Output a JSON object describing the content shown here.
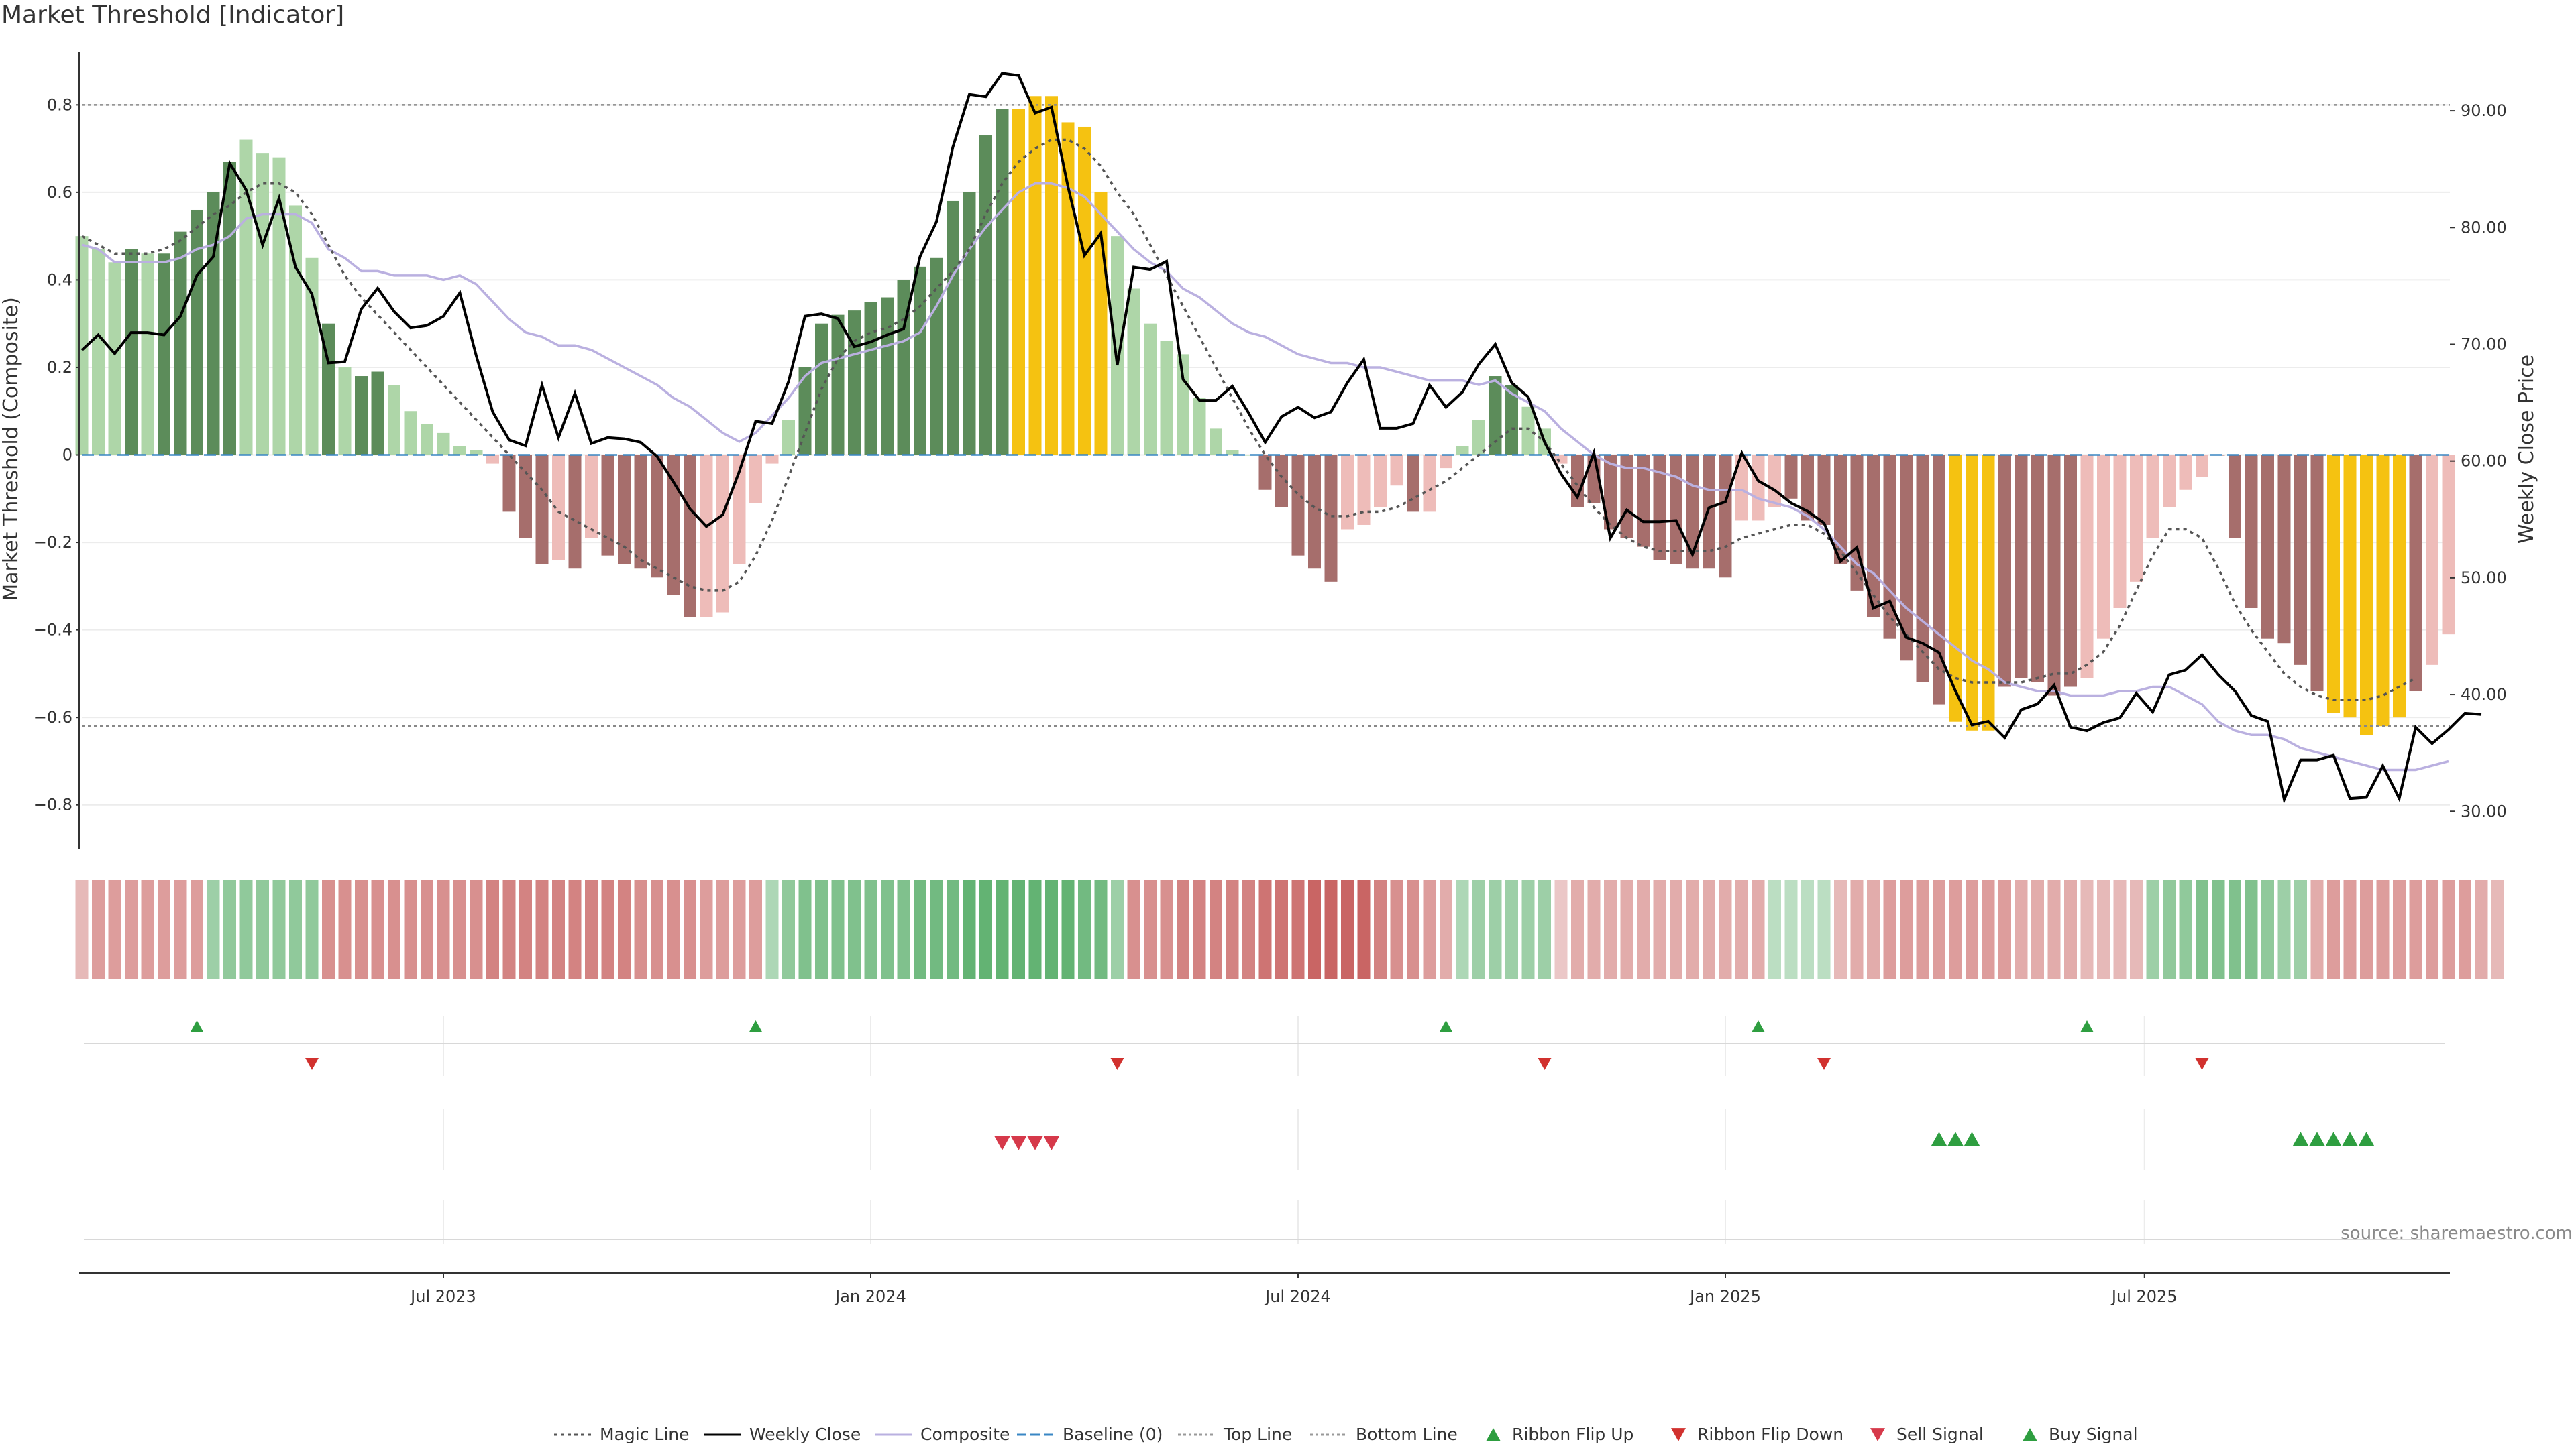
{
  "title": "Market Threshold [Indicator]",
  "source_text": "source: sharemaestro.com",
  "colors": {
    "strong_bull": "#5c8c5a",
    "weak_bull": "#aed6a8",
    "strong_bear": "#a66e6c",
    "weak_bear": "#eebcb9",
    "extreme": "#f5c211",
    "weekly_close": "#000000",
    "composite": "#bab0e0",
    "magic": "#555555",
    "baseline": "#3a87c4",
    "ribbon_up": "#2e9e40",
    "ribbon_down": "#d1312e",
    "sell": "#d6394a",
    "buy": "#2e9e40"
  },
  "chart_data": {
    "type": "bar",
    "ylabel_left": "Market Threshold (Composite)",
    "ylabel_right": "Weekly Close Price",
    "ylim_left": [
      -0.9,
      0.92
    ],
    "ylim_right": [
      26.8,
      95.0
    ],
    "yticks_left": [
      "0.8",
      "0.6",
      "0.4",
      "0.2",
      "0",
      "−0.2",
      "−0.4",
      "−0.6",
      "−0.8"
    ],
    "yticks_right": [
      "90.00",
      "80.00",
      "70.00",
      "60.00",
      "50.00",
      "40.00",
      "30.00"
    ],
    "x_tick_labels": [
      "Jul 2023",
      "Jan 2024",
      "Jul 2024",
      "Jan 2025",
      "Jul 2025"
    ],
    "x_tick_weeks": [
      22,
      48,
      74,
      100,
      125.5
    ],
    "top_line": 0.8,
    "bottom_line": -0.62,
    "bar_values": [
      0.5,
      0.47,
      0.44,
      0.47,
      0.46,
      0.46,
      0.51,
      0.56,
      0.6,
      0.67,
      0.72,
      0.69,
      0.68,
      0.57,
      0.45,
      0.3,
      0.2,
      0.18,
      0.19,
      0.16,
      0.1,
      0.07,
      0.05,
      0.02,
      0.01,
      -0.02,
      -0.13,
      -0.19,
      -0.25,
      -0.24,
      -0.26,
      -0.19,
      -0.23,
      -0.25,
      -0.26,
      -0.28,
      -0.32,
      -0.37,
      -0.37,
      -0.36,
      -0.25,
      -0.11,
      -0.02,
      0.08,
      0.2,
      0.3,
      0.32,
      0.33,
      0.35,
      0.36,
      0.4,
      0.43,
      0.45,
      0.58,
      0.6,
      0.73,
      0.79,
      0.79,
      0.82,
      0.82,
      0.76,
      0.75,
      0.6,
      0.5,
      0.38,
      0.3,
      0.26,
      0.23,
      0.13,
      0.06,
      0.01,
      0.0,
      -0.08,
      -0.12,
      -0.23,
      -0.26,
      -0.29,
      -0.17,
      -0.16,
      -0.12,
      -0.07,
      -0.13,
      -0.13,
      -0.03,
      0.02,
      0.08,
      0.18,
      0.16,
      0.11,
      0.06,
      -0.02,
      -0.12,
      -0.11,
      -0.17,
      -0.19,
      -0.21,
      -0.24,
      -0.25,
      -0.26,
      -0.26,
      -0.28,
      -0.15,
      -0.15,
      -0.12,
      -0.1,
      -0.15,
      -0.16,
      -0.25,
      -0.31,
      -0.37,
      -0.42,
      -0.47,
      -0.52,
      -0.57,
      -0.61,
      -0.63,
      -0.63,
      -0.53,
      -0.51,
      -0.52,
      -0.55,
      -0.53,
      -0.51,
      -0.42,
      -0.35,
      -0.29,
      -0.19,
      -0.12,
      -0.08,
      -0.05,
      0.0,
      -0.19,
      -0.35,
      -0.42,
      -0.43,
      -0.48,
      -0.54,
      -0.59,
      -0.6,
      -0.64,
      -0.62,
      -0.6,
      -0.54,
      -0.48,
      -0.41
    ],
    "bar_classes": [
      "wg",
      "wg",
      "wg",
      "sg",
      "wg",
      "sg",
      "sg",
      "sg",
      "sg",
      "sg",
      "wg",
      "wg",
      "wg",
      "wg",
      "wg",
      "sg",
      "wg",
      "sg",
      "sg",
      "wg",
      "wg",
      "wg",
      "wg",
      "wg",
      "wg",
      "wr",
      "sr",
      "sr",
      "sr",
      "wr",
      "sr",
      "wr",
      "sr",
      "sr",
      "sr",
      "sr",
      "sr",
      "sr",
      "wr",
      "wr",
      "wr",
      "wr",
      "wr",
      "wg",
      "sg",
      "sg",
      "sg",
      "sg",
      "sg",
      "sg",
      "sg",
      "sg",
      "sg",
      "sg",
      "sg",
      "sg",
      "sg",
      "ye",
      "ye",
      "ye",
      "ye",
      "ye",
      "ye",
      "wg",
      "wg",
      "wg",
      "wg",
      "wg",
      "wg",
      "wg",
      "wg",
      "wg",
      "sr",
      "sr",
      "sr",
      "sr",
      "sr",
      "wr",
      "wr",
      "wr",
      "wr",
      "sr",
      "wr",
      "wr",
      "wg",
      "wg",
      "sg",
      "sg",
      "wg",
      "wg",
      "wr",
      "sr",
      "sr",
      "sr",
      "sr",
      "sr",
      "sr",
      "sr",
      "sr",
      "sr",
      "sr",
      "wr",
      "wr",
      "wr",
      "sr",
      "sr",
      "sr",
      "sr",
      "sr",
      "sr",
      "sr",
      "sr",
      "sr",
      "sr",
      "ye",
      "ye",
      "ye",
      "sr",
      "sr",
      "sr",
      "sr",
      "sr",
      "wr",
      "wr",
      "wr",
      "wr",
      "wr",
      "wr",
      "wr",
      "wr",
      "sr",
      "sr",
      "sr",
      "sr",
      "sr",
      "sr",
      "sr",
      "ye",
      "ye",
      "ye",
      "ye",
      "ye",
      "sr",
      "wr",
      "wr"
    ],
    "weekly_close": [
      69.5,
      70.8,
      69.2,
      71.0,
      71.0,
      70.8,
      72.4,
      75.9,
      77.5,
      85.5,
      83.2,
      78.5,
      82.5,
      76.6,
      74.3,
      68.4,
      68.5,
      73.0,
      74.8,
      72.8,
      71.4,
      71.6,
      72.4,
      74.4,
      69.0,
      64.2,
      61.8,
      61.3,
      66.5,
      62.0,
      65.8,
      61.5,
      62.0,
      61.9,
      61.6,
      60.4,
      58.2,
      55.9,
      54.4,
      55.4,
      59.1,
      63.4,
      63.2,
      66.8,
      72.4,
      72.6,
      72.2,
      69.8,
      70.2,
      70.8,
      71.3,
      77.5,
      80.5,
      86.9,
      91.4,
      91.2,
      93.2,
      93.0,
      89.8,
      90.3,
      83.5,
      77.6,
      79.5,
      68.2,
      76.6,
      76.4,
      77.1,
      67.0,
      65.2,
      65.2,
      66.4,
      64.1,
      61.6,
      63.8,
      64.6,
      63.7,
      64.2,
      66.7,
      68.7,
      62.8,
      62.8,
      63.2,
      66.5,
      64.6,
      65.9,
      68.3,
      70.0,
      66.7,
      65.5,
      61.6,
      58.9,
      56.9,
      60.7,
      53.4,
      55.8,
      54.8,
      54.8,
      54.9,
      52.0,
      56.0,
      56.5,
      60.7,
      58.3,
      57.5,
      56.4,
      55.7,
      54.7,
      51.4,
      52.6,
      47.4,
      48.0,
      44.9,
      44.4,
      43.6,
      40.3,
      37.4,
      37.7,
      36.3,
      38.7,
      39.2,
      40.8,
      37.2,
      36.9,
      37.6,
      38.0,
      40.1,
      38.5,
      41.7,
      42.1,
      43.4,
      41.7,
      40.3,
      38.2,
      37.7,
      31.0,
      34.4,
      34.4,
      34.8,
      31.1,
      31.2,
      33.9,
      31.1,
      37.2,
      35.8,
      37.0,
      38.4,
      38.3
    ],
    "composite": [
      0.48,
      0.47,
      0.44,
      0.44,
      0.44,
      0.44,
      0.45,
      0.47,
      0.48,
      0.5,
      0.54,
      0.55,
      0.55,
      0.55,
      0.53,
      0.47,
      0.45,
      0.42,
      0.42,
      0.41,
      0.41,
      0.41,
      0.4,
      0.41,
      0.39,
      0.35,
      0.31,
      0.28,
      0.27,
      0.25,
      0.25,
      0.24,
      0.22,
      0.2,
      0.18,
      0.16,
      0.13,
      0.11,
      0.08,
      0.05,
      0.03,
      0.05,
      0.09,
      0.13,
      0.18,
      0.21,
      0.22,
      0.23,
      0.24,
      0.25,
      0.26,
      0.28,
      0.34,
      0.41,
      0.47,
      0.52,
      0.56,
      0.6,
      0.62,
      0.62,
      0.61,
      0.59,
      0.55,
      0.51,
      0.47,
      0.44,
      0.42,
      0.38,
      0.36,
      0.33,
      0.3,
      0.28,
      0.27,
      0.25,
      0.23,
      0.22,
      0.21,
      0.21,
      0.2,
      0.2,
      0.19,
      0.18,
      0.17,
      0.17,
      0.17,
      0.16,
      0.17,
      0.14,
      0.12,
      0.1,
      0.06,
      0.03,
      0.0,
      -0.02,
      -0.03,
      -0.03,
      -0.04,
      -0.05,
      -0.07,
      -0.08,
      -0.08,
      -0.08,
      -0.1,
      -0.11,
      -0.12,
      -0.14,
      -0.17,
      -0.21,
      -0.25,
      -0.27,
      -0.31,
      -0.35,
      -0.38,
      -0.41,
      -0.44,
      -0.47,
      -0.49,
      -0.52,
      -0.53,
      -0.54,
      -0.54,
      -0.55,
      -0.55,
      -0.55,
      -0.54,
      -0.54,
      -0.53,
      -0.53,
      -0.55,
      -0.57,
      -0.61,
      -0.63,
      -0.64,
      -0.64,
      -0.65,
      -0.67,
      -0.68,
      -0.69,
      -0.7,
      -0.71,
      -0.72,
      -0.72,
      -0.72,
      -0.71,
      -0.7
    ],
    "magic_line": [
      0.5,
      0.48,
      0.46,
      0.46,
      0.46,
      0.47,
      0.49,
      0.52,
      0.55,
      0.57,
      0.6,
      0.62,
      0.62,
      0.6,
      0.55,
      0.48,
      0.41,
      0.36,
      0.32,
      0.28,
      0.24,
      0.2,
      0.16,
      0.12,
      0.08,
      0.04,
      0.0,
      -0.04,
      -0.08,
      -0.13,
      -0.15,
      -0.17,
      -0.19,
      -0.21,
      -0.24,
      -0.26,
      -0.28,
      -0.3,
      -0.31,
      -0.31,
      -0.29,
      -0.23,
      -0.15,
      -0.05,
      0.05,
      0.15,
      0.22,
      0.26,
      0.28,
      0.29,
      0.31,
      0.34,
      0.38,
      0.42,
      0.47,
      0.55,
      0.62,
      0.67,
      0.7,
      0.72,
      0.72,
      0.7,
      0.66,
      0.6,
      0.55,
      0.48,
      0.41,
      0.34,
      0.27,
      0.2,
      0.13,
      0.06,
      0.0,
      -0.05,
      -0.09,
      -0.12,
      -0.14,
      -0.14,
      -0.13,
      -0.13,
      -0.12,
      -0.1,
      -0.08,
      -0.06,
      -0.03,
      0.0,
      0.03,
      0.06,
      0.06,
      0.03,
      -0.02,
      -0.07,
      -0.12,
      -0.16,
      -0.19,
      -0.21,
      -0.22,
      -0.22,
      -0.22,
      -0.22,
      -0.21,
      -0.19,
      -0.18,
      -0.17,
      -0.16,
      -0.16,
      -0.18,
      -0.22,
      -0.27,
      -0.32,
      -0.37,
      -0.41,
      -0.45,
      -0.49,
      -0.51,
      -0.52,
      -0.52,
      -0.52,
      -0.52,
      -0.51,
      -0.5,
      -0.5,
      -0.48,
      -0.45,
      -0.39,
      -0.31,
      -0.23,
      -0.17,
      -0.17,
      -0.19,
      -0.26,
      -0.34,
      -0.4,
      -0.45,
      -0.5,
      -0.53,
      -0.55,
      -0.56,
      -0.56,
      -0.56,
      -0.55,
      -0.53,
      -0.51
    ],
    "ribbon_strength": [
      -0.3,
      -0.5,
      -0.5,
      -0.5,
      -0.5,
      -0.5,
      -0.5,
      -0.5,
      0.4,
      0.5,
      0.5,
      0.5,
      0.5,
      0.5,
      0.5,
      -0.6,
      -0.6,
      -0.6,
      -0.6,
      -0.6,
      -0.6,
      -0.6,
      -0.6,
      -0.6,
      -0.6,
      -0.7,
      -0.7,
      -0.7,
      -0.7,
      -0.7,
      -0.7,
      -0.7,
      -0.7,
      -0.7,
      -0.6,
      -0.6,
      -0.6,
      -0.6,
      -0.5,
      -0.5,
      -0.5,
      -0.5,
      0.3,
      0.5,
      0.6,
      0.6,
      0.6,
      0.6,
      0.6,
      0.6,
      0.6,
      0.7,
      0.7,
      0.7,
      0.8,
      0.8,
      0.8,
      0.8,
      0.8,
      0.8,
      0.8,
      0.7,
      0.7,
      0.4,
      -0.6,
      -0.6,
      -0.6,
      -0.7,
      -0.7,
      -0.7,
      -0.7,
      -0.7,
      -0.8,
      -0.8,
      -0.8,
      -0.9,
      -0.9,
      -0.9,
      -0.9,
      -0.7,
      -0.6,
      -0.6,
      -0.5,
      -0.4,
      0.3,
      0.4,
      0.4,
      0.4,
      0.4,
      0.4,
      -0.2,
      -0.4,
      -0.4,
      -0.4,
      -0.4,
      -0.4,
      -0.4,
      -0.4,
      -0.4,
      -0.4,
      -0.4,
      -0.4,
      -0.4,
      0.2,
      0.2,
      0.2,
      0.2,
      -0.3,
      -0.4,
      -0.4,
      -0.5,
      -0.5,
      -0.5,
      -0.5,
      -0.5,
      -0.5,
      -0.5,
      -0.5,
      -0.4,
      -0.4,
      -0.4,
      -0.4,
      -0.3,
      -0.3,
      -0.3,
      -0.3,
      0.4,
      0.5,
      0.5,
      0.6,
      0.6,
      0.6,
      0.6,
      0.5,
      0.4,
      0.4,
      -0.4,
      -0.5,
      -0.5,
      -0.5,
      -0.5,
      -0.5,
      -0.5,
      -0.5,
      -0.5,
      -0.5,
      -0.4,
      -0.3
    ],
    "ribbon_flip_up_weeks": [
      7,
      41,
      83,
      102,
      122
    ],
    "ribbon_flip_down_weeks": [
      14,
      63,
      89,
      106,
      129
    ],
    "sell_signal_weeks": [
      56,
      57,
      58,
      59
    ],
    "buy_signal_weeks": [
      113,
      114,
      115,
      135,
      136,
      137,
      138,
      139
    ],
    "legend": [
      "Magic Line",
      "Weekly Close",
      "Composite",
      "Baseline (0)",
      "Top Line",
      "Bottom Line",
      "Ribbon Flip Up",
      "Ribbon Flip Down",
      "Sell Signal",
      "Buy Signal"
    ]
  }
}
